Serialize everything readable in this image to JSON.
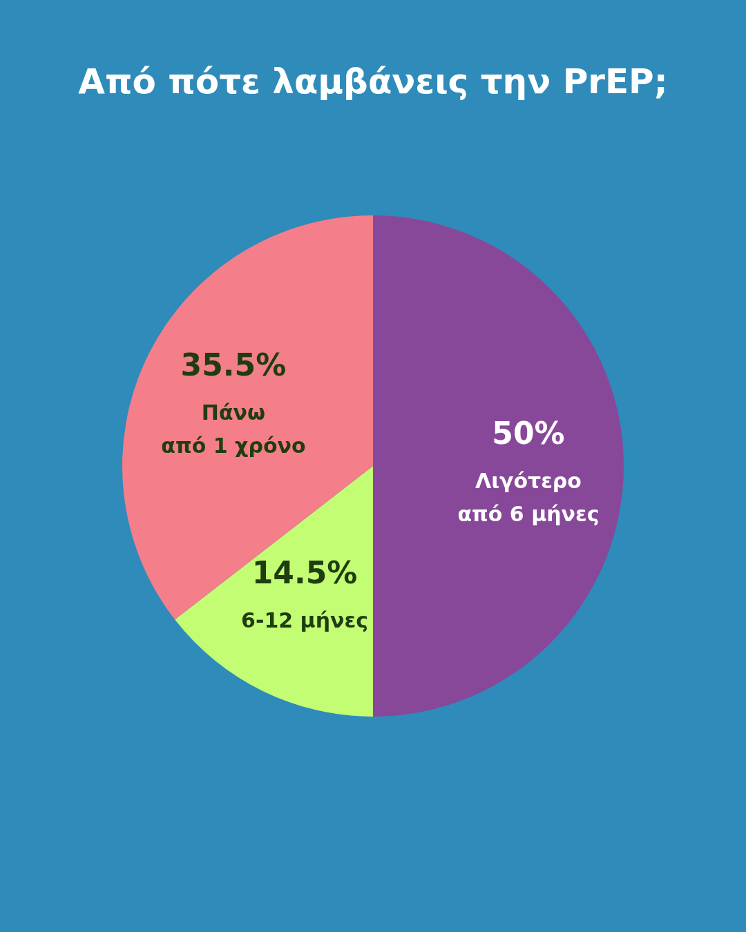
{
  "chart_data": {
    "type": "pie",
    "title": "Από πότε λαμβάνεις την PrEP;",
    "categories": [
      "Λιγότερο από 6 μήνες",
      "6-12 μήνες",
      "Πάνω από 1 χρόνο"
    ],
    "values": [
      50,
      14.5,
      35.5
    ],
    "colors": [
      "#87489a",
      "#c3fd74",
      "#f47e8a"
    ],
    "value_labels": [
      "50%",
      "14.5%",
      "35.5%"
    ],
    "legend": false
  }
}
